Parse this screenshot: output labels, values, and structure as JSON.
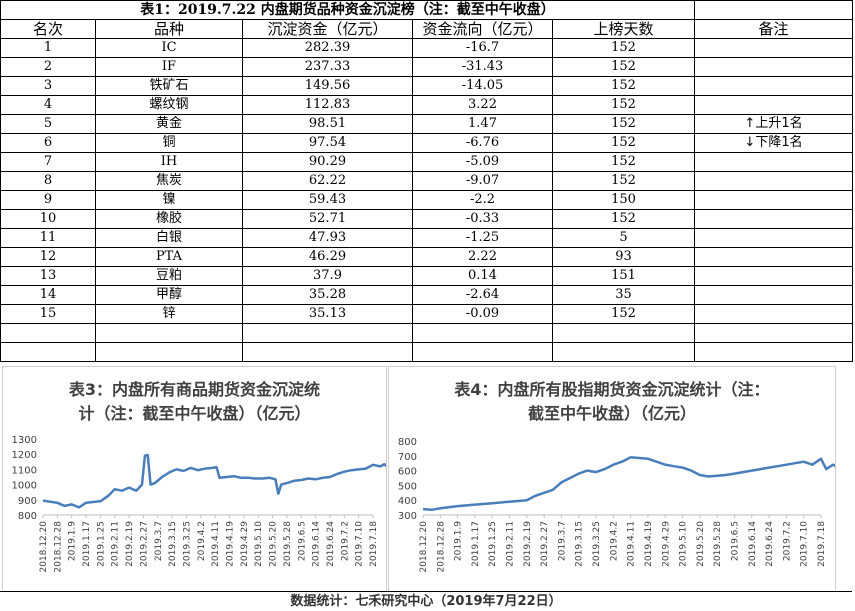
{
  "table": {
    "title": "表1：2019.7.22 内盘期货品种资金沉淀榜（注：截至中午收盘）",
    "headers": [
      "名次",
      "品种",
      "沉淀资金（亿元）",
      "资金流向（亿元）",
      "上榜天数",
      "备注"
    ],
    "rows": [
      [
        "1",
        "IC",
        "282.39",
        "-16.7",
        "152",
        ""
      ],
      [
        "2",
        "IF",
        "237.33",
        "-31.43",
        "152",
        ""
      ],
      [
        "3",
        "铁矿石",
        "149.56",
        "-14.05",
        "152",
        ""
      ],
      [
        "4",
        "螺纹钢",
        "112.83",
        "3.22",
        "152",
        ""
      ],
      [
        "5",
        "黄金",
        "98.51",
        "1.47",
        "152",
        "上升1名"
      ],
      [
        "6",
        "铜",
        "97.54",
        "-6.76",
        "152",
        "下降1名"
      ],
      [
        "7",
        "IH",
        "90.29",
        "-5.09",
        "152",
        ""
      ],
      [
        "8",
        "焦炭",
        "62.22",
        "-9.07",
        "152",
        ""
      ],
      [
        "9",
        "镍",
        "59.43",
        "-2.2",
        "150",
        ""
      ],
      [
        "10",
        "橡胶",
        "52.71",
        "-0.33",
        "152",
        ""
      ],
      [
        "11",
        "白银",
        "47.93",
        "-1.25",
        "5",
        ""
      ],
      [
        "12",
        "PTA",
        "46.29",
        "2.22",
        "93",
        ""
      ],
      [
        "13",
        "豆粕",
        "37.9",
        "0.14",
        "151",
        ""
      ],
      [
        "14",
        "甲醇",
        "35.28",
        "-2.64",
        "35",
        ""
      ],
      [
        "15",
        "锌",
        "35.13",
        "-0.09",
        "152",
        ""
      ]
    ],
    "up_arrow": "↑",
    "down_arrow": "↓"
  },
  "footer": "数据统计：七禾研究中心（2019年7月22日）",
  "chart_data": [
    {
      "type": "line",
      "title_line1": "表3：内盘所有商品期货资金沉淀统",
      "title_line2": "计（注：截至中午收盘）（亿元）",
      "ylim": [
        800,
        1300
      ],
      "yticks": [
        800,
        900,
        1000,
        1100,
        1200,
        1300
      ],
      "xticks": [
        "2018.12.20",
        "2018.12.28",
        "2019.1.9",
        "2019.1.17",
        "2019.1.25",
        "2019.2.11",
        "2019.2.19",
        "2019.2.27",
        "2019.3.7",
        "2019.3.15",
        "2019.3.25",
        "2019.4.2",
        "2019.4.11",
        "2019.4.19",
        "2019.4.29",
        "2019.5.10",
        "2019.5.20",
        "2019.5.28",
        "2019.6.5",
        "2019.6.14",
        "2019.6.24",
        "2019.7.2",
        "2019.7.10",
        "2019.7.18"
      ],
      "color": "#4a7ebb",
      "series": [
        {
          "x": 0,
          "y": 895
        },
        {
          "x": 1,
          "y": 880
        },
        {
          "x": 1.5,
          "y": 860
        },
        {
          "x": 2,
          "y": 870
        },
        {
          "x": 2.5,
          "y": 850
        },
        {
          "x": 3,
          "y": 880
        },
        {
          "x": 4,
          "y": 890
        },
        {
          "x": 4.6,
          "y": 930
        },
        {
          "x": 5,
          "y": 970
        },
        {
          "x": 5.5,
          "y": 960
        },
        {
          "x": 6,
          "y": 980
        },
        {
          "x": 6.5,
          "y": 960
        },
        {
          "x": 6.9,
          "y": 1000
        },
        {
          "x": 7.1,
          "y": 1190
        },
        {
          "x": 7.3,
          "y": 1195
        },
        {
          "x": 7.5,
          "y": 1000
        },
        {
          "x": 7.8,
          "y": 1010
        },
        {
          "x": 8.3,
          "y": 1050
        },
        {
          "x": 8.8,
          "y": 1080
        },
        {
          "x": 9.3,
          "y": 1100
        },
        {
          "x": 9.8,
          "y": 1090
        },
        {
          "x": 10.3,
          "y": 1110
        },
        {
          "x": 10.8,
          "y": 1095
        },
        {
          "x": 11.3,
          "y": 1105
        },
        {
          "x": 11.8,
          "y": 1110
        },
        {
          "x": 12.1,
          "y": 1115
        },
        {
          "x": 12.3,
          "y": 1045
        },
        {
          "x": 12.8,
          "y": 1050
        },
        {
          "x": 13.3,
          "y": 1055
        },
        {
          "x": 13.8,
          "y": 1045
        },
        {
          "x": 14.3,
          "y": 1045
        },
        {
          "x": 14.8,
          "y": 1040
        },
        {
          "x": 15.3,
          "y": 1040
        },
        {
          "x": 15.8,
          "y": 1045
        },
        {
          "x": 16.2,
          "y": 1035
        },
        {
          "x": 16.4,
          "y": 940
        },
        {
          "x": 16.6,
          "y": 1000
        },
        {
          "x": 17,
          "y": 1010
        },
        {
          "x": 17.5,
          "y": 1025
        },
        {
          "x": 18,
          "y": 1030
        },
        {
          "x": 18.5,
          "y": 1040
        },
        {
          "x": 19,
          "y": 1035
        },
        {
          "x": 19.5,
          "y": 1045
        },
        {
          "x": 20,
          "y": 1050
        },
        {
          "x": 20.5,
          "y": 1070
        },
        {
          "x": 21,
          "y": 1085
        },
        {
          "x": 21.5,
          "y": 1095
        },
        {
          "x": 22,
          "y": 1100
        },
        {
          "x": 22.5,
          "y": 1105
        },
        {
          "x": 23,
          "y": 1130
        },
        {
          "x": 23.5,
          "y": 1120
        },
        {
          "x": 23.8,
          "y": 1135
        },
        {
          "x": 24,
          "y": 1115
        }
      ]
    },
    {
      "type": "line",
      "title_line1": "表4：内盘所有股指期货资金沉淀统计（注：",
      "title_line2": "截至中午收盘）（亿元）",
      "ylim": [
        300,
        800
      ],
      "yticks": [
        300,
        400,
        500,
        600,
        700,
        800
      ],
      "xticks": [
        "2018.12.20",
        "2018.12.28",
        "2019.1.9",
        "2019.1.17",
        "2019.1.25",
        "2019.2.11",
        "2019.2.19",
        "2019.2.27",
        "2019.3.7",
        "2019.3.15",
        "2019.3.25",
        "2019.4.2",
        "2019.4.11",
        "2019.4.19",
        "2019.4.29",
        "2019.5.10",
        "2019.5.20",
        "2019.5.28",
        "2019.6.5",
        "2019.6.14",
        "2019.6.24",
        "2019.7.2",
        "2019.7.10",
        "2019.7.18"
      ],
      "color": "#4a7ebb",
      "series": [
        {
          "x": 0,
          "y": 340
        },
        {
          "x": 0.5,
          "y": 335
        },
        {
          "x": 1,
          "y": 345
        },
        {
          "x": 2,
          "y": 360
        },
        {
          "x": 3,
          "y": 370
        },
        {
          "x": 4,
          "y": 380
        },
        {
          "x": 5,
          "y": 390
        },
        {
          "x": 6,
          "y": 400
        },
        {
          "x": 6.5,
          "y": 430
        },
        {
          "x": 7,
          "y": 450
        },
        {
          "x": 7.5,
          "y": 470
        },
        {
          "x": 8,
          "y": 520
        },
        {
          "x": 8.5,
          "y": 550
        },
        {
          "x": 9,
          "y": 580
        },
        {
          "x": 9.5,
          "y": 600
        },
        {
          "x": 10,
          "y": 590
        },
        {
          "x": 10.5,
          "y": 610
        },
        {
          "x": 11,
          "y": 640
        },
        {
          "x": 11.5,
          "y": 660
        },
        {
          "x": 12,
          "y": 690
        },
        {
          "x": 12.5,
          "y": 685
        },
        {
          "x": 13,
          "y": 680
        },
        {
          "x": 13.5,
          "y": 660
        },
        {
          "x": 14,
          "y": 640
        },
        {
          "x": 14.5,
          "y": 630
        },
        {
          "x": 15,
          "y": 620
        },
        {
          "x": 15.5,
          "y": 600
        },
        {
          "x": 16,
          "y": 570
        },
        {
          "x": 16.5,
          "y": 560
        },
        {
          "x": 17,
          "y": 565
        },
        {
          "x": 17.5,
          "y": 570
        },
        {
          "x": 18,
          "y": 580
        },
        {
          "x": 18.5,
          "y": 590
        },
        {
          "x": 19,
          "y": 600
        },
        {
          "x": 19.5,
          "y": 610
        },
        {
          "x": 20,
          "y": 620
        },
        {
          "x": 20.5,
          "y": 630
        },
        {
          "x": 21,
          "y": 640
        },
        {
          "x": 21.5,
          "y": 650
        },
        {
          "x": 22,
          "y": 660
        },
        {
          "x": 22.5,
          "y": 640
        },
        {
          "x": 23,
          "y": 680
        },
        {
          "x": 23.3,
          "y": 610
        },
        {
          "x": 23.7,
          "y": 640
        },
        {
          "x": 24,
          "y": 620
        }
      ]
    }
  ]
}
